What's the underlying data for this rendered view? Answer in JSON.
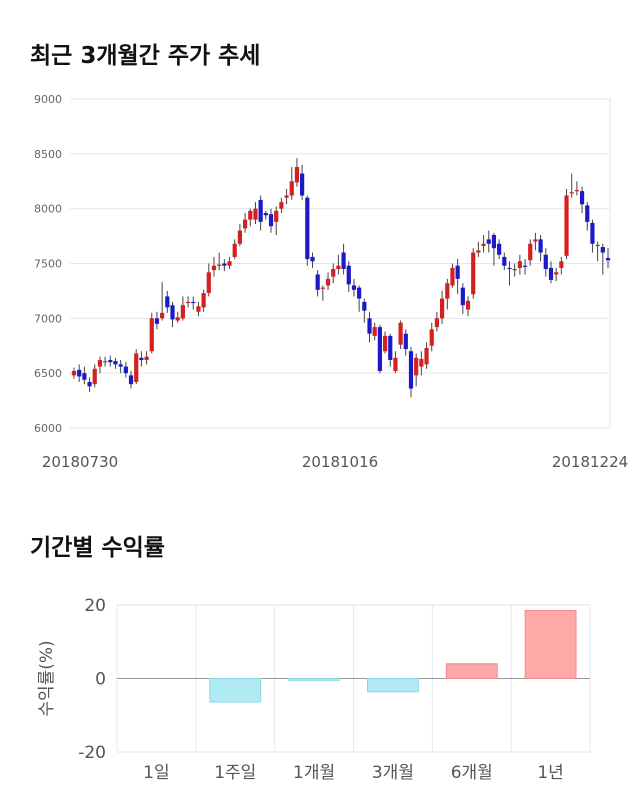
{
  "titles": {
    "price_trend": "최근 3개월간 주가 추세",
    "period_returns": "기간별 수익률"
  },
  "chart_data": [
    {
      "type": "candlestick",
      "title": "최근 3개월간 주가 추세",
      "ylim": [
        6000,
        9000
      ],
      "y_ticks": [
        6000,
        6500,
        7000,
        7500,
        8000,
        8500,
        9000
      ],
      "x_tick_labels": [
        "20180730",
        "20181016",
        "20181224"
      ],
      "grid": true,
      "colors": {
        "up": "#d62020",
        "down": "#1a1ac8",
        "wick": "#444444"
      },
      "candles": [
        [
          6480,
          6520,
          6450,
          6550
        ],
        [
          6530,
          6470,
          6420,
          6580
        ],
        [
          6500,
          6440,
          6400,
          6560
        ],
        [
          6420,
          6380,
          6330,
          6460
        ],
        [
          6400,
          6540,
          6370,
          6580
        ],
        [
          6560,
          6620,
          6500,
          6650
        ],
        [
          6600,
          6610,
          6560,
          6650
        ],
        [
          6620,
          6600,
          6560,
          6660
        ],
        [
          6610,
          6580,
          6540,
          6640
        ],
        [
          6580,
          6560,
          6500,
          6620
        ],
        [
          6560,
          6500,
          6460,
          6600
        ],
        [
          6480,
          6400,
          6360,
          6520
        ],
        [
          6420,
          6680,
          6400,
          6720
        ],
        [
          6640,
          6620,
          6560,
          6700
        ],
        [
          6620,
          6650,
          6580,
          6700
        ],
        [
          6700,
          7000,
          6680,
          7050
        ],
        [
          7000,
          6950,
          6900,
          7060
        ],
        [
          7000,
          7050,
          6980,
          7330
        ],
        [
          7200,
          7100,
          7050,
          7250
        ],
        [
          7120,
          6990,
          6920,
          7150
        ],
        [
          6980,
          7010,
          6960,
          7060
        ],
        [
          7000,
          7120,
          6980,
          7200
        ],
        [
          7140,
          7150,
          7100,
          7200
        ],
        [
          7150,
          7140,
          7080,
          7200
        ],
        [
          7060,
          7110,
          7020,
          7150
        ],
        [
          7100,
          7230,
          7060,
          7260
        ],
        [
          7230,
          7420,
          7200,
          7500
        ],
        [
          7440,
          7480,
          7380,
          7560
        ],
        [
          7480,
          7490,
          7440,
          7600
        ],
        [
          7500,
          7480,
          7430,
          7540
        ],
        [
          7480,
          7520,
          7450,
          7560
        ],
        [
          7560,
          7680,
          7540,
          7720
        ],
        [
          7680,
          7800,
          7660,
          7860
        ],
        [
          7820,
          7900,
          7780,
          7960
        ],
        [
          7900,
          7980,
          7840,
          8000
        ],
        [
          7900,
          8000,
          7860,
          8060
        ],
        [
          8080,
          7880,
          7800,
          8120
        ],
        [
          7960,
          7940,
          7900,
          7980
        ],
        [
          7950,
          7840,
          7780,
          8000
        ],
        [
          7880,
          7980,
          7760,
          8020
        ],
        [
          8000,
          8060,
          7960,
          8100
        ],
        [
          8100,
          8120,
          8040,
          8180
        ],
        [
          8120,
          8250,
          8080,
          8380
        ],
        [
          8240,
          8380,
          8200,
          8460
        ],
        [
          8320,
          8120,
          8080,
          8400
        ],
        [
          8100,
          7540,
          7480,
          8120
        ],
        [
          7560,
          7520,
          7460,
          7600
        ],
        [
          7400,
          7260,
          7200,
          7440
        ],
        [
          7270,
          7280,
          7160,
          7300
        ],
        [
          7300,
          7360,
          7260,
          7420
        ],
        [
          7380,
          7450,
          7320,
          7500
        ],
        [
          7450,
          7480,
          7400,
          7580
        ],
        [
          7600,
          7450,
          7400,
          7680
        ],
        [
          7480,
          7310,
          7240,
          7520
        ],
        [
          7300,
          7260,
          7200,
          7360
        ],
        [
          7280,
          7180,
          7060,
          7300
        ],
        [
          7150,
          7070,
          6960,
          7180
        ],
        [
          7000,
          6860,
          6780,
          7060
        ],
        [
          6840,
          6920,
          6800,
          6960
        ],
        [
          6920,
          6520,
          6500,
          6940
        ],
        [
          6700,
          6840,
          6680,
          6880
        ],
        [
          6840,
          6620,
          6560,
          6860
        ],
        [
          6520,
          6640,
          6500,
          6700
        ],
        [
          6760,
          6960,
          6720,
          6980
        ],
        [
          6860,
          6720,
          6660,
          6900
        ],
        [
          6700,
          6360,
          6280,
          6740
        ],
        [
          6480,
          6640,
          6380,
          6680
        ],
        [
          6560,
          6630,
          6480,
          6700
        ],
        [
          6580,
          6730,
          6540,
          6780
        ],
        [
          6750,
          6900,
          6700,
          6960
        ],
        [
          6920,
          7000,
          6880,
          7060
        ],
        [
          7000,
          7180,
          6950,
          7250
        ],
        [
          7180,
          7320,
          7080,
          7360
        ],
        [
          7300,
          7460,
          7280,
          7500
        ],
        [
          7480,
          7360,
          7220,
          7540
        ],
        [
          7280,
          7120,
          7040,
          7320
        ],
        [
          7080,
          7160,
          7020,
          7200
        ],
        [
          7220,
          7600,
          7180,
          7640
        ],
        [
          7600,
          7620,
          7560,
          7700
        ],
        [
          7660,
          7680,
          7600,
          7760
        ],
        [
          7720,
          7680,
          7600,
          7800
        ],
        [
          7760,
          7640,
          7480,
          7780
        ],
        [
          7680,
          7580,
          7540,
          7720
        ],
        [
          7560,
          7480,
          7440,
          7600
        ],
        [
          7460,
          7450,
          7300,
          7520
        ],
        [
          7450,
          7450,
          7380,
          7500
        ],
        [
          7460,
          7520,
          7400,
          7580
        ],
        [
          7480,
          7470,
          7400,
          7540
        ],
        [
          7530,
          7680,
          7480,
          7720
        ],
        [
          7700,
          7720,
          7620,
          7780
        ],
        [
          7720,
          7600,
          7520,
          7760
        ],
        [
          7580,
          7450,
          7380,
          7640
        ],
        [
          7460,
          7350,
          7320,
          7520
        ],
        [
          7400,
          7420,
          7340,
          7460
        ],
        [
          7460,
          7520,
          7400,
          7560
        ],
        [
          7570,
          8120,
          7540,
          8180
        ],
        [
          8140,
          8150,
          8100,
          8320
        ],
        [
          8160,
          8170,
          8120,
          8250
        ],
        [
          8160,
          8040,
          7960,
          8200
        ],
        [
          8030,
          7880,
          7800,
          8060
        ],
        [
          7870,
          7680,
          7600,
          7900
        ],
        [
          7660,
          7670,
          7520,
          7700
        ],
        [
          7650,
          7600,
          7400,
          7680
        ],
        [
          7550,
          7530,
          7460,
          7640
        ]
      ]
    },
    {
      "type": "bar",
      "title": "기간별 수익률",
      "ylabel": "수익률(%)",
      "ylim": [
        -20,
        20
      ],
      "y_ticks": [
        -20,
        0,
        20
      ],
      "categories": [
        "1일",
        "1주일",
        "1개월",
        "3개월",
        "6개월",
        "1년"
      ],
      "values": [
        0.0,
        -6.4,
        -0.5,
        -3.6,
        4.0,
        18.5
      ],
      "colors": {
        "positive": "#ffa8a8",
        "negative": "#b0eaf2"
      },
      "grid": true
    }
  ]
}
